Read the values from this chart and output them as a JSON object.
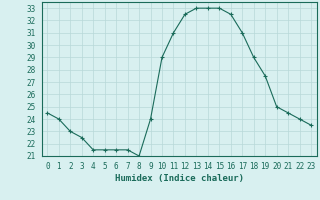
{
  "x": [
    0,
    1,
    2,
    3,
    4,
    5,
    6,
    7,
    8,
    9,
    10,
    11,
    12,
    13,
    14,
    15,
    16,
    17,
    18,
    19,
    20,
    21,
    22,
    23
  ],
  "y": [
    24.5,
    24.0,
    23.0,
    22.5,
    21.5,
    21.5,
    21.5,
    21.5,
    21.0,
    24.0,
    29.0,
    31.0,
    32.5,
    33.0,
    33.0,
    33.0,
    32.5,
    31.0,
    29.0,
    27.5,
    25.0,
    24.5,
    24.0,
    23.5
  ],
  "xlabel": "Humidex (Indice chaleur)",
  "xlim": [
    -0.5,
    23.5
  ],
  "ylim": [
    21,
    33.5
  ],
  "yticks": [
    21,
    22,
    23,
    24,
    25,
    26,
    27,
    28,
    29,
    30,
    31,
    32,
    33
  ],
  "xticks": [
    0,
    1,
    2,
    3,
    4,
    5,
    6,
    7,
    8,
    9,
    10,
    11,
    12,
    13,
    14,
    15,
    16,
    17,
    18,
    19,
    20,
    21,
    22,
    23
  ],
  "line_color": "#1a6b5a",
  "marker": "+",
  "bg_color": "#d8f0f0",
  "grid_color": "#b8d8d8"
}
